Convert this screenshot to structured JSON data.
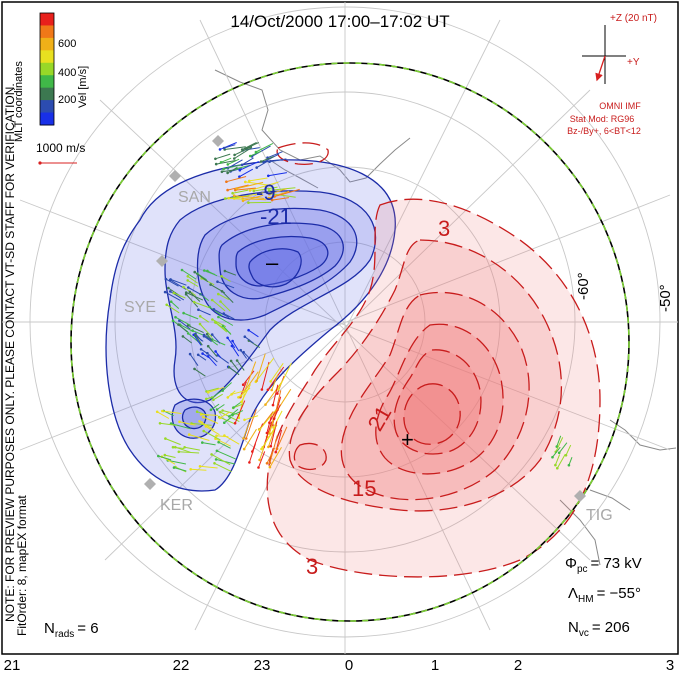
{
  "title": "14/Oct/2000 17:00–17:02 UT",
  "left_notes": {
    "coords": "MLT coordinates",
    "preview": "NOTE: FOR PREVIEW PURPOSES ONLY. PLEASE CONTACT VT-SD STAFF FOR VERIFICATION.",
    "fit": "FitOrder: 8, mapEX format"
  },
  "velocity_scale": {
    "label": "Vel [m/s]",
    "ticks": [
      "600",
      "400",
      "200"
    ],
    "colors": [
      "#e8201c",
      "#f07818",
      "#f0b018",
      "#e8e020",
      "#98d828",
      "#40b848",
      "#3c7850",
      "#2c4cb0",
      "#1830e8"
    ],
    "reference_label": "1000 m/s"
  },
  "imf": {
    "plus_z": "+Z (20 nT)",
    "plus_y": "+Y",
    "source": "OMNI IMF",
    "stat_mod": "Stat Mod: RG96",
    "condition": "Bz-/By+, 6<BT<12"
  },
  "latitude_labels": [
    "-60°",
    "-50°"
  ],
  "radars": [
    "SAN",
    "SYE",
    "KER",
    "TIG"
  ],
  "contour_labels": [
    "-9",
    "-21",
    "3",
    "3",
    "21",
    "15"
  ],
  "potential_markers": {
    "min": "–",
    "max": "+"
  },
  "stats": {
    "phi_sym": "Φ",
    "phi_sub": "pc",
    "phi_val": "= 73 kV",
    "lambda_sym": "Λ",
    "lambda_sub": "HM",
    "lambda_val": "= −55°",
    "nvc_sym": "N",
    "nvc_sub": "vc",
    "nvc_val": "= 206",
    "nrads_sym": "N",
    "nrads_sub": "rads",
    "nrads_val": "= 6"
  },
  "mlt_axis": [
    "21",
    "22",
    "23",
    "0",
    "1",
    "2",
    "3"
  ],
  "colors": {
    "negative_fill": "#6670e6",
    "positive_fill": "#f07878",
    "negative_line": "#1c2ca8",
    "positive_line": "#c81c1c",
    "hmb_green": "#7cd034"
  }
}
